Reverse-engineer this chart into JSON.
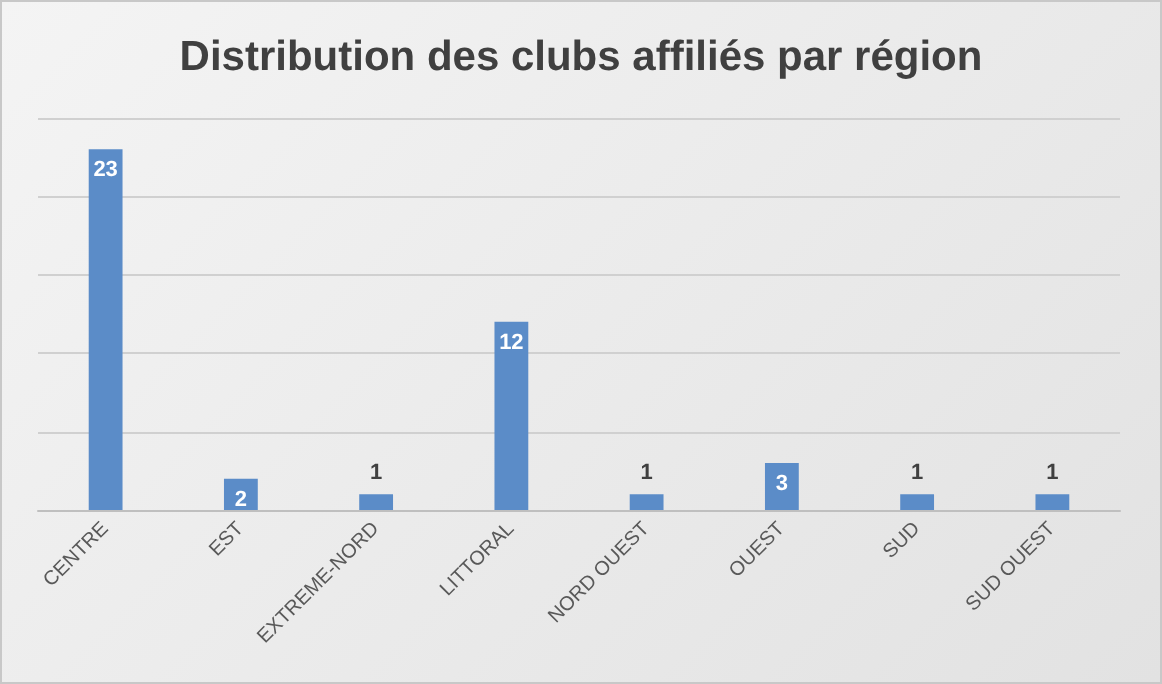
{
  "chart_data": {
    "type": "bar",
    "title": "Distribution des clubs affiliés par région",
    "categories": [
      "CENTRE",
      "EST",
      "EXTREME-NORD",
      "LITTORAL",
      "NORD OUEST",
      "OUEST",
      "SUD",
      "SUD OUEST"
    ],
    "values": [
      23,
      2,
      1,
      12,
      1,
      3,
      1,
      1
    ],
    "color": "#5b8cc8",
    "ylim": [
      0,
      25
    ],
    "yticks": [
      {
        "value": 0,
        "label": null
      },
      {
        "value": 5,
        "label": null
      },
      {
        "value": 10,
        "label": null
      },
      {
        "value": 15,
        "label": null
      },
      {
        "value": 20,
        "label": null
      },
      {
        "value": 25,
        "label": null
      }
    ],
    "tick_labels": "x",
    "grid": "y",
    "data_labels": true
  }
}
